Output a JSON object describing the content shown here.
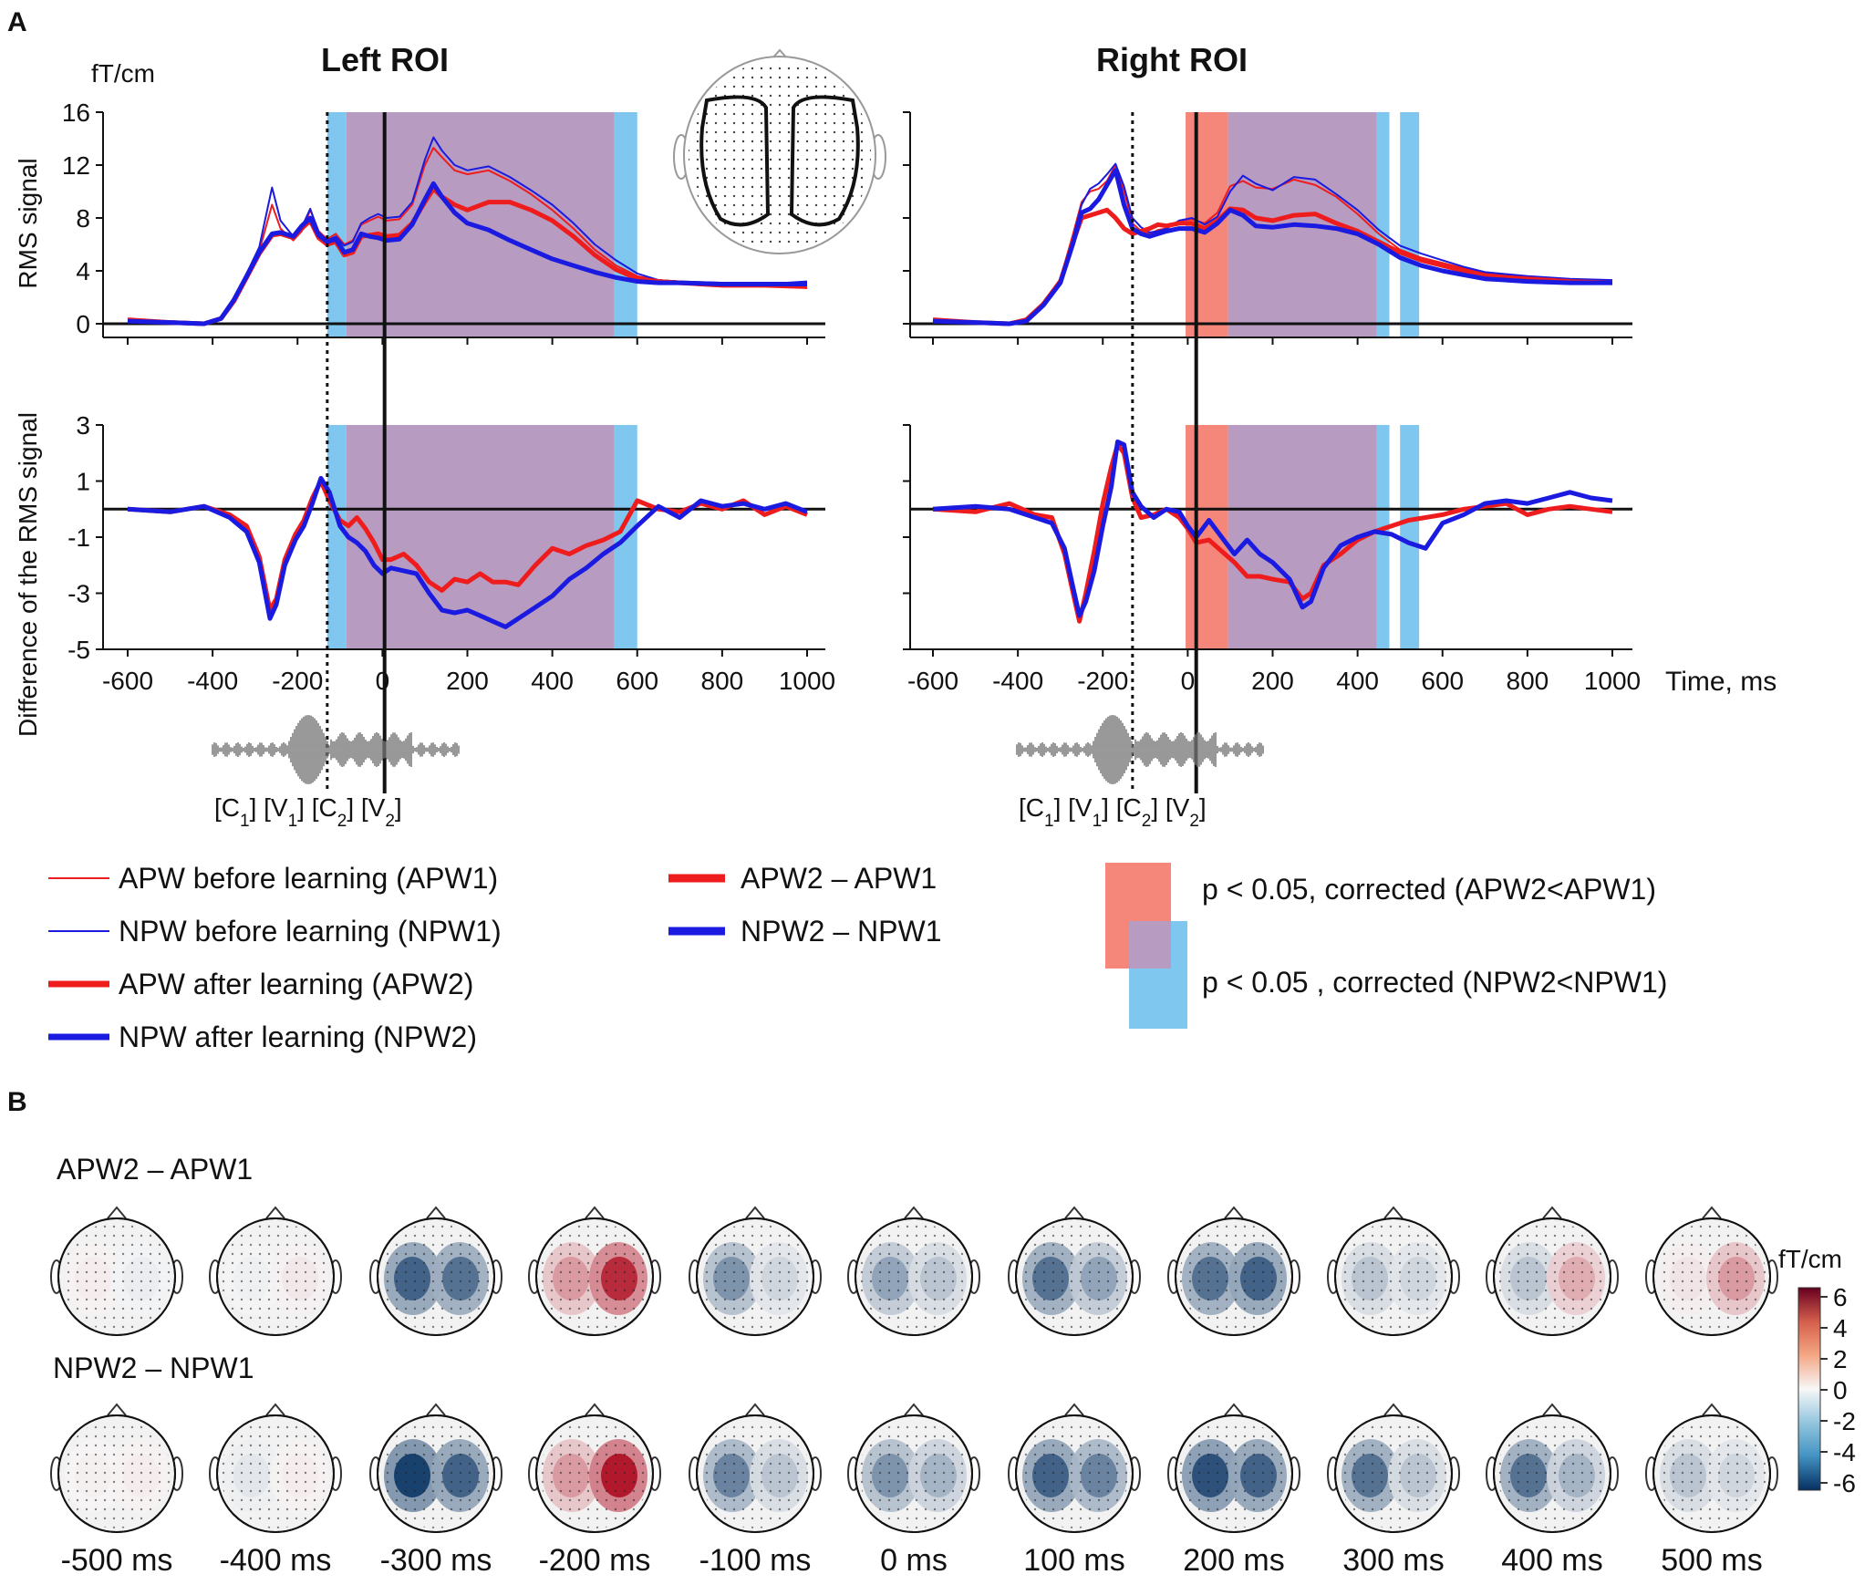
{
  "panel_a_label": "A",
  "panel_b_label": "B",
  "unit_label": "fT/cm",
  "time_label": "Time, ms",
  "inset_head_name": "sensor-layout-head",
  "colors": {
    "apw": "#ee1c1c",
    "npw": "#1a1ae0",
    "sig_apw": "#f4867a",
    "sig_npw": "#7fc7ef",
    "overlap": "#b79bc0"
  },
  "chart_data": [
    {
      "id": "left_rms",
      "type": "line",
      "title": "Left ROI",
      "ylabel": "RMS signal",
      "xlim": [
        -650,
        1020
      ],
      "ylim": [
        0,
        16
      ],
      "yticks": [
        0,
        4,
        8,
        12,
        16
      ],
      "xticks": [
        -600,
        -400,
        -200,
        0,
        200,
        400,
        600,
        800,
        1000
      ],
      "x": [
        -600,
        -500,
        -420,
        -380,
        -350,
        -320,
        -290,
        -260,
        -240,
        -210,
        -190,
        -170,
        -150,
        -130,
        -110,
        -90,
        -70,
        -50,
        -30,
        -10,
        10,
        40,
        70,
        100,
        120,
        140,
        170,
        200,
        250,
        300,
        350,
        400,
        450,
        500,
        550,
        600,
        650,
        700,
        800,
        900,
        1000
      ],
      "series": [
        {
          "name": "APW before learning (APW1)",
          "style": "thin-red",
          "values": [
            0.3,
            0.2,
            0.1,
            0.5,
            1.8,
            3.6,
            5.5,
            9.0,
            7.2,
            6.3,
            7.0,
            8.6,
            7.0,
            6.4,
            6.8,
            6.0,
            6.3,
            7.5,
            7.8,
            8.1,
            7.8,
            7.9,
            9.0,
            12.0,
            13.3,
            12.6,
            11.6,
            11.3,
            11.6,
            10.8,
            9.8,
            8.6,
            7.2,
            5.6,
            4.4,
            3.6,
            3.3,
            3.2,
            3.0,
            3.0,
            2.7
          ]
        },
        {
          "name": "NPW before learning (NPW1)",
          "style": "thin-blue",
          "values": [
            0.2,
            0.1,
            0.0,
            0.4,
            1.9,
            3.8,
            5.8,
            10.3,
            7.8,
            6.6,
            7.3,
            8.7,
            6.9,
            6.3,
            6.6,
            5.9,
            6.2,
            7.6,
            8.0,
            8.3,
            8.0,
            8.1,
            9.2,
            12.4,
            14.1,
            13.1,
            12.0,
            11.6,
            11.9,
            11.1,
            10.1,
            9.0,
            7.6,
            6.0,
            4.8,
            3.8,
            3.3,
            3.2,
            3.1,
            3.0,
            3.2
          ]
        },
        {
          "name": "APW after learning (APW2)",
          "style": "thick-red",
          "values": [
            0.3,
            0.1,
            0.0,
            0.4,
            1.7,
            3.5,
            5.3,
            6.7,
            6.8,
            6.5,
            7.2,
            7.8,
            6.5,
            6.0,
            6.2,
            5.2,
            5.4,
            6.6,
            6.7,
            6.8,
            6.6,
            6.7,
            7.6,
            9.2,
            10.2,
            9.6,
            9.0,
            8.6,
            9.2,
            9.2,
            8.6,
            7.8,
            6.6,
            5.2,
            4.1,
            3.4,
            3.2,
            3.1,
            2.9,
            2.9,
            2.8
          ]
        },
        {
          "name": "NPW after learning (NPW2)",
          "style": "thick-blue",
          "values": [
            0.2,
            0.1,
            0.0,
            0.4,
            1.8,
            3.6,
            5.4,
            6.8,
            6.9,
            6.6,
            7.4,
            8.0,
            6.7,
            6.2,
            6.4,
            5.4,
            5.6,
            6.8,
            6.6,
            6.5,
            6.3,
            6.4,
            7.5,
            9.4,
            10.6,
            9.6,
            8.4,
            7.6,
            7.1,
            6.3,
            5.6,
            4.9,
            4.4,
            3.9,
            3.5,
            3.2,
            3.1,
            3.1,
            3.0,
            3.0,
            3.0
          ]
        }
      ]
    },
    {
      "id": "left_diff",
      "type": "line",
      "ylabel": "Difference of the RMS signal",
      "xlim": [
        -650,
        1020
      ],
      "ylim": [
        -5,
        3
      ],
      "yticks": [
        -5,
        -3,
        -1,
        1,
        3
      ],
      "xticks": [
        -600,
        -400,
        -200,
        0,
        200,
        400,
        600,
        800,
        1000
      ],
      "x": [
        -600,
        -500,
        -420,
        -360,
        -320,
        -290,
        -265,
        -250,
        -230,
        -205,
        -185,
        -165,
        -145,
        -125,
        -100,
        -80,
        -60,
        -40,
        -20,
        0,
        20,
        50,
        80,
        110,
        140,
        170,
        200,
        230,
        260,
        290,
        320,
        360,
        400,
        440,
        480,
        520,
        560,
        600,
        650,
        700,
        750,
        800,
        850,
        900,
        950,
        1000
      ],
      "series": [
        {
          "name": "APW2 – APW1",
          "style": "thick-red",
          "values": [
            0.0,
            -0.1,
            0.1,
            -0.2,
            -0.6,
            -1.7,
            -3.6,
            -3.2,
            -1.8,
            -0.9,
            -0.4,
            0.4,
            1.0,
            0.3,
            -0.4,
            -0.6,
            -0.3,
            -0.7,
            -1.2,
            -1.8,
            -1.8,
            -1.6,
            -2.0,
            -2.6,
            -2.9,
            -2.5,
            -2.6,
            -2.3,
            -2.6,
            -2.6,
            -2.7,
            -2.0,
            -1.4,
            -1.6,
            -1.3,
            -1.1,
            -0.8,
            0.3,
            0.0,
            -0.1,
            0.2,
            0.0,
            0.3,
            -0.2,
            0.1,
            -0.2
          ]
        },
        {
          "name": "NPW2 – NPW1",
          "style": "thick-blue",
          "values": [
            0.0,
            -0.1,
            0.1,
            -0.3,
            -0.8,
            -1.9,
            -3.9,
            -3.4,
            -2.0,
            -1.1,
            -0.6,
            0.2,
            1.1,
            0.6,
            -0.6,
            -1.0,
            -1.2,
            -1.5,
            -2.0,
            -2.3,
            -2.1,
            -2.2,
            -2.3,
            -3.0,
            -3.6,
            -3.7,
            -3.6,
            -3.8,
            -4.0,
            -4.2,
            -3.9,
            -3.5,
            -3.1,
            -2.5,
            -2.1,
            -1.6,
            -1.2,
            -0.6,
            0.1,
            -0.3,
            0.3,
            0.1,
            0.2,
            0.0,
            0.2,
            -0.1
          ]
        }
      ]
    },
    {
      "id": "right_rms",
      "type": "line",
      "title": "Right ROI",
      "xlim": [
        -650,
        1020
      ],
      "ylim": [
        0,
        16
      ],
      "yticks": [
        0,
        4,
        8,
        12,
        16
      ],
      "xticks": [
        -600,
        -400,
        -200,
        0,
        200,
        400,
        600,
        800,
        1000
      ],
      "x": [
        -600,
        -500,
        -420,
        -380,
        -340,
        -300,
        -270,
        -250,
        -230,
        -210,
        -190,
        -170,
        -150,
        -130,
        -110,
        -90,
        -70,
        -50,
        -20,
        10,
        40,
        70,
        100,
        130,
        160,
        200,
        250,
        300,
        350,
        400,
        450,
        500,
        550,
        600,
        650,
        700,
        800,
        900,
        1000
      ],
      "series": [
        {
          "name": "APW before learning (APW1)",
          "style": "thin-red",
          "values": [
            0.3,
            0.1,
            0.0,
            0.3,
            1.6,
            3.4,
            6.8,
            9.2,
            10.0,
            10.2,
            10.8,
            12.0,
            10.0,
            7.6,
            7.0,
            6.8,
            7.1,
            7.2,
            7.8,
            7.9,
            7.6,
            8.4,
            10.4,
            10.8,
            10.3,
            10.2,
            10.9,
            10.5,
            9.6,
            8.3,
            6.8,
            5.6,
            5.0,
            4.6,
            4.2,
            3.8,
            3.5,
            3.2,
            3.2
          ]
        },
        {
          "name": "NPW before learning (NPW1)",
          "style": "thin-blue",
          "values": [
            0.2,
            0.1,
            0.0,
            0.2,
            1.4,
            3.2,
            6.5,
            9.0,
            10.2,
            10.6,
            11.3,
            12.1,
            10.4,
            8.0,
            7.3,
            6.9,
            7.0,
            7.2,
            7.8,
            8.0,
            7.5,
            8.1,
            10.0,
            11.2,
            10.6,
            10.1,
            11.1,
            10.9,
            9.8,
            8.6,
            7.1,
            5.9,
            5.3,
            4.8,
            4.3,
            3.9,
            3.6,
            3.4,
            3.3
          ]
        },
        {
          "name": "APW after learning (APW2)",
          "style": "thick-red",
          "values": [
            0.3,
            0.1,
            0.0,
            0.3,
            1.5,
            3.2,
            6.2,
            8.0,
            8.2,
            8.4,
            8.6,
            8.0,
            7.2,
            6.8,
            7.0,
            7.2,
            7.5,
            7.4,
            7.6,
            7.6,
            7.2,
            7.8,
            8.7,
            8.6,
            8.0,
            7.8,
            8.2,
            8.3,
            7.6,
            7.0,
            6.2,
            5.4,
            4.8,
            4.4,
            4.0,
            3.6,
            3.4,
            3.2,
            3.1
          ]
        },
        {
          "name": "NPW after learning (NPW2)",
          "style": "thick-blue",
          "values": [
            0.2,
            0.1,
            0.0,
            0.2,
            1.4,
            3.1,
            6.1,
            8.4,
            8.7,
            9.4,
            10.5,
            11.6,
            9.0,
            7.2,
            6.8,
            6.6,
            6.8,
            7.0,
            7.2,
            7.2,
            6.9,
            7.6,
            8.6,
            8.2,
            7.4,
            7.3,
            7.5,
            7.4,
            7.2,
            6.8,
            6.0,
            5.0,
            4.4,
            4.0,
            3.7,
            3.4,
            3.2,
            3.1,
            3.1
          ]
        }
      ]
    },
    {
      "id": "right_diff",
      "type": "line",
      "xlim": [
        -650,
        1020
      ],
      "ylim": [
        -5,
        3
      ],
      "yticks": [
        -5,
        -3,
        -1,
        1,
        3
      ],
      "xticks": [
        -600,
        -400,
        -200,
        0,
        200,
        400,
        600,
        800,
        1000
      ],
      "x": [
        -600,
        -500,
        -420,
        -360,
        -320,
        -290,
        -270,
        -255,
        -240,
        -220,
        -200,
        -180,
        -165,
        -150,
        -130,
        -110,
        -80,
        -50,
        -20,
        0,
        20,
        50,
        80,
        110,
        140,
        170,
        200,
        240,
        270,
        290,
        320,
        360,
        400,
        440,
        480,
        520,
        560,
        600,
        650,
        700,
        750,
        800,
        850,
        900,
        950,
        1000
      ],
      "series": [
        {
          "name": "APW2 – APW1",
          "style": "thick-red",
          "values": [
            0.0,
            -0.1,
            0.2,
            -0.2,
            -0.3,
            -1.6,
            -3.0,
            -4.0,
            -3.0,
            -1.5,
            0.2,
            1.5,
            2.3,
            2.0,
            0.4,
            -0.3,
            -0.2,
            0.0,
            -0.3,
            -0.7,
            -1.2,
            -1.1,
            -1.5,
            -1.9,
            -2.4,
            -2.4,
            -2.5,
            -2.6,
            -3.2,
            -3.0,
            -2.0,
            -1.6,
            -1.1,
            -0.8,
            -0.6,
            -0.4,
            -0.3,
            -0.2,
            0.0,
            0.1,
            0.2,
            -0.2,
            0.0,
            0.1,
            0.0,
            -0.1
          ]
        },
        {
          "name": "NPW2 – NPW1",
          "style": "thick-blue",
          "values": [
            0.0,
            0.1,
            0.0,
            -0.3,
            -0.5,
            -1.4,
            -2.8,
            -3.8,
            -3.3,
            -2.2,
            -0.6,
            0.8,
            2.4,
            2.3,
            0.6,
            0.1,
            -0.3,
            0.0,
            -0.1,
            -0.6,
            -1.0,
            -0.4,
            -1.0,
            -1.6,
            -1.1,
            -1.6,
            -1.9,
            -2.5,
            -3.5,
            -3.3,
            -2.1,
            -1.3,
            -1.0,
            -0.8,
            -0.9,
            -1.2,
            -1.4,
            -0.5,
            -0.2,
            0.2,
            0.3,
            0.2,
            0.4,
            0.6,
            0.4,
            0.3
          ]
        }
      ]
    }
  ],
  "significance": {
    "left_npw": [
      [
        -130,
        -85
      ],
      [
        540,
        600
      ]
    ],
    "left_both": [
      [
        -85,
        545
      ]
    ],
    "right_apw": [
      [
        -5,
        95
      ]
    ],
    "right_both": [
      [
        95,
        445
      ]
    ],
    "right_npw": [
      [
        445,
        475
      ],
      [
        500,
        545
      ]
    ]
  },
  "markers": {
    "dotted_ms": -130,
    "solid_ms": 5,
    "right_dotted_ms": -130,
    "right_solid_ms": 20
  },
  "phoneme_labels": [
    "[C",
    "1",
    "] [V",
    "1",
    "] [C",
    "2",
    "] [V",
    "2",
    "]"
  ],
  "legend": {
    "lines": [
      {
        "label": "APW before learning (APW1)",
        "color": "#ee1c1c",
        "width": 2
      },
      {
        "label": "NPW before learning (NPW1)",
        "color": "#1a1ae0",
        "width": 2
      },
      {
        "label": "APW after learning (APW2)",
        "color": "#ee1c1c",
        "width": 7
      },
      {
        "label": "NPW after learning (NPW2)",
        "color": "#1a1ae0",
        "width": 7
      }
    ],
    "diffs": [
      {
        "label": "APW2 – APW1",
        "color": "#ee1c1c"
      },
      {
        "label": "NPW2 – NPW1",
        "color": "#1a1ae0"
      }
    ],
    "sig_apw": "p < 0.05, corrected (APW2<APW1)",
    "sig_npw": "p < 0.05 , corrected (NPW2<NPW1)"
  },
  "topo": {
    "row_labels": [
      "APW2 – APW1",
      "NPW2 – NPW1"
    ],
    "time_labels": [
      "-500 ms",
      "-400 ms",
      "-300 ms",
      "-200 ms",
      "-100 ms",
      "0 ms",
      "100 ms",
      "200 ms",
      "300 ms",
      "400 ms",
      "500 ms"
    ],
    "left_blob": [
      [
        0.3,
        -0.2,
        -4.5,
        2.5,
        -3.0,
        -2.5,
        -4.0,
        -4.0,
        -1.5,
        -1.5,
        0.5
      ],
      [
        0.2,
        -0.5,
        -5.5,
        2.5,
        -3.5,
        -3.0,
        -4.5,
        -5.0,
        -4.0,
        -4.0,
        -1.5
      ]
    ],
    "right_blob": [
      [
        -0.3,
        0.4,
        -4.0,
        5.5,
        -1.0,
        -1.5,
        -2.5,
        -4.5,
        -1.0,
        2.0,
        2.5
      ],
      [
        0.3,
        0.3,
        -4.5,
        6.0,
        -1.5,
        -2.0,
        -3.5,
        -4.5,
        -1.5,
        -2.0,
        -1.0
      ]
    ],
    "colorbar_label": "fT/cm",
    "colorbar_ticks": [
      "6",
      "4",
      "2",
      "0",
      "-2",
      "-4",
      "-6"
    ]
  }
}
